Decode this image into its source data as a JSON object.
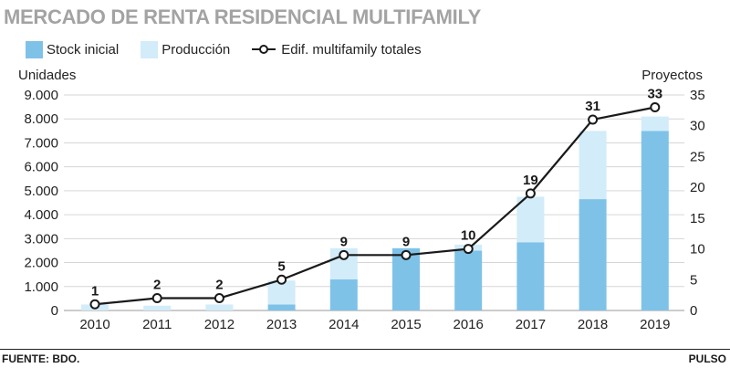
{
  "title": "MERCADO DE RENTA RESIDENCIAL MULTIFAMILY",
  "legend": {
    "stock": "Stock inicial",
    "produccion": "Producción",
    "edificios": "Edif. multifamily totales"
  },
  "footer": {
    "source": "FUENTE: BDO.",
    "brand": "PULSO"
  },
  "colors": {
    "stock": "#7fc2e8",
    "produccion": "#d2ecf9",
    "line": "#1a1a1a",
    "title": "#a3a3a3"
  },
  "chart_data": {
    "type": "bar",
    "categories": [
      "2010",
      "2011",
      "2012",
      "2013",
      "2014",
      "2015",
      "2016",
      "2017",
      "2018",
      "2019"
    ],
    "series": [
      {
        "name": "Stock inicial",
        "type": "bar",
        "axis": "left",
        "stacked": true,
        "values": [
          0,
          0,
          0,
          250,
          1300,
          2600,
          2500,
          2850,
          4650,
          7500
        ]
      },
      {
        "name": "Producción",
        "type": "bar",
        "axis": "left",
        "stacked": true,
        "values": [
          250,
          200,
          250,
          1000,
          1300,
          0,
          250,
          1900,
          2850,
          600
        ]
      },
      {
        "name": "Edif. multifamily totales",
        "type": "line",
        "axis": "right",
        "values": [
          1,
          2,
          2,
          5,
          9,
          9,
          10,
          19,
          31,
          33
        ]
      }
    ],
    "ylabel": "Unidades",
    "y2label": "Proyectos",
    "ylim": [
      0,
      9000
    ],
    "y2lim": [
      0,
      35
    ],
    "yticks": [
      "0",
      "1.000",
      "2.000",
      "3.000",
      "4.000",
      "5.000",
      "6.000",
      "7.000",
      "8.000",
      "9.000"
    ],
    "y2ticks": [
      "0",
      "5",
      "10",
      "15",
      "20",
      "25",
      "30",
      "35"
    ],
    "grid": true
  }
}
